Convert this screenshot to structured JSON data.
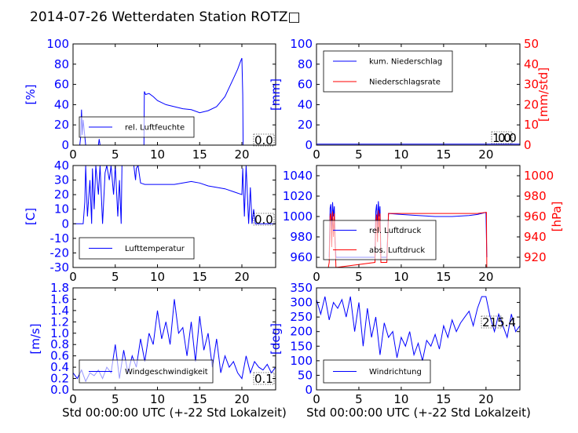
{
  "title": "2014-07-26 Wetterdaten Station ROTZ□",
  "x_label": "Std 00:00:00 UTC (+-22 Std Lokalzeit)",
  "colors": {
    "primary": "#0000ff",
    "secondary": "#ff0000",
    "light": "#8080ff",
    "text": "#000000"
  },
  "chart_data": [
    {
      "type": "line",
      "panel": "humidity",
      "ylabel": "[%]",
      "xlim": [
        0,
        24
      ],
      "ylim": [
        0,
        100
      ],
      "xticks": [
        0,
        5,
        10,
        15,
        20
      ],
      "yticks": [
        0,
        20,
        40,
        60,
        80,
        100
      ],
      "legend": [
        "rel. Luftfeuchte"
      ],
      "value_box": "0.0",
      "series": [
        {
          "name": "rel. Luftfeuchte",
          "color": "#0000ff",
          "x": [
            0,
            0.8,
            0.9,
            1.0,
            1.1,
            1.2,
            1.5,
            2.5,
            3.0,
            3.1,
            3.2,
            3.4,
            5.0,
            8.4,
            8.45,
            8.6,
            9.0,
            9.5,
            10,
            11,
            12,
            13,
            14,
            15,
            16,
            17,
            18,
            19,
            19.5,
            19.8,
            20.0,
            20.1,
            20.15,
            24
          ],
          "y": [
            0,
            0,
            8,
            35,
            10,
            25,
            0,
            0,
            0,
            6,
            0,
            0,
            0,
            0,
            53,
            50,
            51,
            48,
            44,
            40,
            38,
            36,
            35,
            32,
            34,
            38,
            48,
            66,
            75,
            82,
            86,
            50,
            0,
            0
          ]
        }
      ]
    },
    {
      "type": "line",
      "panel": "precipitation",
      "ylabel": "[mm]",
      "y2label": "[mm/std]",
      "xlim": [
        0,
        24
      ],
      "ylim": [
        0,
        100
      ],
      "y2lim": [
        0,
        50
      ],
      "xticks": [
        0,
        5,
        10,
        15,
        20
      ],
      "yticks": [
        0,
        20,
        40,
        60,
        80,
        100
      ],
      "y2ticks": [
        0,
        10,
        20,
        30,
        40,
        50
      ],
      "legend": [
        "kum. Niederschlag",
        "Niederschlagsrate"
      ],
      "value_box": "1.0",
      "value_box_back": "0.0",
      "series": [
        {
          "name": "kum. Niederschlag",
          "color": "#0000ff",
          "x": [
            0,
            24
          ],
          "y": [
            1,
            1
          ]
        },
        {
          "name": "Niederschlagsrate",
          "color": "#ff0000",
          "x": [
            0,
            24
          ],
          "y": [
            0,
            0
          ],
          "axis": "right"
        }
      ]
    },
    {
      "type": "line",
      "panel": "temperature",
      "ylabel": "[C]",
      "xlim": [
        0,
        24
      ],
      "ylim": [
        -30,
        40
      ],
      "xticks": [
        0,
        5,
        10,
        15,
        20
      ],
      "yticks": [
        -30,
        -20,
        -10,
        0,
        10,
        20,
        30,
        40
      ],
      "legend": [
        "Lufttemperatur"
      ],
      "value_box": "0.0",
      "series": [
        {
          "name": "Lufttemperatur",
          "color": "#0000ff",
          "x": [
            0,
            1.2,
            1.4,
            1.5,
            1.7,
            2.0,
            2.2,
            2.3,
            2.5,
            2.7,
            3.0,
            3.2,
            3.5,
            3.8,
            4.0,
            4.3,
            4.5,
            4.8,
            5.0,
            5.3,
            5.5,
            5.7,
            5.8,
            6.0,
            6.3,
            6.5,
            6.8,
            7.0,
            7.2,
            7.4,
            7.5,
            7.7,
            8.0,
            8.5,
            9,
            10,
            11,
            12,
            13,
            14,
            15,
            16,
            17,
            18,
            19,
            20,
            20.1,
            20.3,
            20.5,
            20.8,
            21.0,
            21.2,
            21.4,
            21.6,
            21.8,
            22.0,
            24
          ],
          "y": [
            0,
            0,
            15,
            40,
            5,
            30,
            0,
            38,
            10,
            40,
            20,
            40,
            0,
            35,
            40,
            30,
            40,
            20,
            40,
            5,
            30,
            0,
            40,
            40,
            40,
            40,
            40,
            40,
            40,
            30,
            38,
            40,
            28,
            27,
            27,
            27,
            27,
            27,
            28,
            29,
            28,
            26,
            25,
            24,
            22,
            20,
            38,
            5,
            40,
            0,
            25,
            0,
            10,
            0,
            0,
            0,
            0
          ]
        }
      ]
    },
    {
      "type": "line",
      "panel": "pressure",
      "ylabel": "",
      "y2label": "[hPa]",
      "xlim": [
        0,
        24
      ],
      "ylim": [
        950,
        1050
      ],
      "y2lim": [
        910,
        1010
      ],
      "xticks": [
        0,
        5,
        10,
        15,
        20
      ],
      "yticks": [
        960,
        980,
        1000,
        1020,
        1040
      ],
      "y2ticks": [
        920,
        940,
        960,
        980,
        1000
      ],
      "legend": [
        "rel. Luftdruck",
        "abs. Luftdruck"
      ],
      "series": [
        {
          "name": "rel. Luftdruck",
          "color": "#0000ff",
          "x": [
            1.5,
            1.6,
            1.7,
            1.8,
            1.9,
            2.0,
            2.1,
            2.2,
            2.3,
            6.9,
            7.0,
            7.1,
            7.2,
            7.3,
            7.4,
            7.5,
            7.6,
            8.3,
            8.5,
            10,
            12,
            14,
            15,
            16,
            18,
            19,
            20,
            20.1
          ],
          "y": [
            960,
            1008,
            1012,
            985,
            1014,
            1000,
            1010,
            975,
            960,
            960,
            1005,
            1012,
            990,
            1015,
            1000,
            1010,
            960,
            960,
            1003,
            1002,
            1001,
            1000,
            1000,
            1000,
            1001,
            1002,
            1004,
            960
          ]
        },
        {
          "name": "abs. Luftdruck",
          "color": "#ff0000",
          "axis": "right",
          "x": [
            1.4,
            1.5,
            1.6,
            1.7,
            1.8,
            1.9,
            2.0,
            2.1,
            2.2,
            2.3,
            6.9,
            7.0,
            7.1,
            7.2,
            7.3,
            7.4,
            7.5,
            7.6,
            8.3,
            8.5,
            10,
            12,
            14,
            15,
            16,
            18,
            19,
            20,
            20.05,
            20.1
          ],
          "y": [
            910,
            915,
            960,
            963,
            930,
            965,
            940,
            963,
            935,
            910,
            915,
            955,
            962,
            935,
            966,
            945,
            963,
            915,
            915,
            963,
            963,
            963,
            963,
            963,
            963,
            963,
            963,
            964,
            964,
            910
          ]
        }
      ]
    },
    {
      "type": "line",
      "panel": "wind-speed",
      "ylabel": "[m/s]",
      "xlim": [
        0,
        24
      ],
      "ylim": [
        0,
        1.8
      ],
      "xticks": [
        0,
        5,
        10,
        15,
        20
      ],
      "yticks": [
        0.0,
        0.2,
        0.4,
        0.6,
        0.8,
        1.0,
        1.2,
        1.4,
        1.6,
        1.8
      ],
      "legend": [
        "Windgeschwindigkeit"
      ],
      "value_box": "0.1",
      "series": [
        {
          "name": "Windgeschwindigkeit",
          "color": "#0000ff",
          "x": [
            0,
            0.5,
            1,
            1.5,
            2,
            2.5,
            3,
            3.5,
            4,
            4.5,
            5,
            5.5,
            6,
            6.5,
            7,
            7.5,
            8,
            8.5,
            9,
            9.5,
            10,
            10.5,
            11,
            11.5,
            12,
            12.5,
            13,
            13.5,
            14,
            14.5,
            15,
            15.5,
            16,
            16.5,
            17,
            17.5,
            18,
            18.5,
            19,
            19.5,
            20,
            20.5,
            21,
            21.5,
            22,
            22.5,
            23,
            23.5,
            24
          ],
          "y": [
            0.3,
            0.2,
            0.35,
            0.15,
            0.3,
            0.25,
            0.35,
            0.2,
            0.4,
            0.3,
            0.8,
            0.2,
            0.7,
            0.3,
            0.6,
            0.4,
            0.9,
            0.5,
            1.0,
            0.8,
            1.4,
            0.9,
            1.2,
            0.8,
            1.6,
            1.0,
            1.1,
            0.6,
            1.2,
            0.5,
            1.3,
            0.7,
            1.0,
            0.4,
            0.9,
            0.3,
            0.6,
            0.4,
            0.5,
            0.3,
            0.2,
            0.6,
            0.3,
            0.5,
            0.4,
            0.35,
            0.45,
            0.3,
            0.4
          ]
        }
      ]
    },
    {
      "type": "line",
      "panel": "wind-direction",
      "ylabel": "[deg]",
      "xlim": [
        0,
        24
      ],
      "ylim": [
        0,
        350
      ],
      "xticks": [
        0,
        5,
        10,
        15,
        20
      ],
      "yticks": [
        0,
        50,
        100,
        150,
        200,
        250,
        300,
        350
      ],
      "legend": [
        "Windrichtung"
      ],
      "value_box": "215.4",
      "series": [
        {
          "name": "Windrichtung",
          "color": "#0000ff",
          "x": [
            0,
            0.5,
            1,
            1.5,
            2,
            2.5,
            3,
            3.5,
            4,
            4.5,
            5,
            5.5,
            6,
            6.5,
            7,
            7.5,
            8,
            8.5,
            9,
            9.5,
            10,
            10.5,
            11,
            11.5,
            12,
            12.5,
            13,
            13.5,
            14,
            14.5,
            15,
            15.5,
            16,
            16.5,
            17,
            17.5,
            18,
            18.5,
            19,
            19.5,
            20,
            20.5,
            21,
            21.5,
            22,
            22.5,
            23,
            23.5,
            24
          ],
          "y": [
            310,
            260,
            320,
            240,
            300,
            280,
            310,
            250,
            320,
            200,
            300,
            150,
            280,
            180,
            250,
            120,
            230,
            180,
            200,
            110,
            180,
            150,
            200,
            120,
            160,
            100,
            170,
            150,
            190,
            140,
            220,
            180,
            240,
            200,
            230,
            250,
            270,
            220,
            280,
            320,
            320,
            250,
            200,
            260,
            220,
            180,
            260,
            200,
            220
          ]
        }
      ]
    }
  ]
}
